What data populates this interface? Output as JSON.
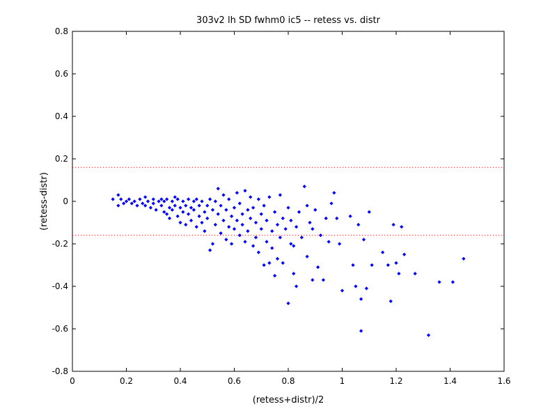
{
  "chart_data": {
    "type": "scatter",
    "title": "303v2 lh SD fwhm0 ic5 -- retess vs. distr",
    "xlabel": "(retess+distr)/2",
    "ylabel": "(retess-distr)",
    "xlim": [
      0,
      1.6
    ],
    "ylim": [
      -0.8,
      0.8
    ],
    "x_ticks": [
      "0",
      "0.2",
      "0.4",
      "0.6",
      "0.8",
      "1",
      "1.2",
      "1.4",
      "1.6"
    ],
    "y_ticks": [
      "-0.8",
      "-0.6",
      "-0.4",
      "-0.2",
      "0",
      "0.2",
      "0.4",
      "0.6",
      "0.8"
    ],
    "grid": false,
    "reference_lines": [
      {
        "y": 0.16,
        "style": "dotted",
        "color": "#ff0000"
      },
      {
        "y": -0.16,
        "style": "dotted",
        "color": "#ff0000"
      }
    ],
    "series": [
      {
        "marker": "diamond",
        "color": "#0000ff",
        "points": [
          [
            0.15,
            0.01
          ],
          [
            0.17,
            0.03
          ],
          [
            0.18,
            0.01
          ],
          [
            0.17,
            -0.02
          ],
          [
            0.19,
            -0.01
          ],
          [
            0.2,
            0.0
          ],
          [
            0.21,
            0.01
          ],
          [
            0.22,
            -0.01
          ],
          [
            0.23,
            0.0
          ],
          [
            0.24,
            -0.02
          ],
          [
            0.25,
            0.01
          ],
          [
            0.26,
            -0.01
          ],
          [
            0.27,
            0.02
          ],
          [
            0.27,
            -0.02
          ],
          [
            0.28,
            0.0
          ],
          [
            0.29,
            -0.03
          ],
          [
            0.3,
            0.01
          ],
          [
            0.3,
            -0.01
          ],
          [
            0.31,
            -0.04
          ],
          [
            0.32,
            0.0
          ],
          [
            0.33,
            0.01
          ],
          [
            0.33,
            -0.02
          ],
          [
            0.34,
            -0.05
          ],
          [
            0.34,
            0.0
          ],
          [
            0.35,
            -0.06
          ],
          [
            0.35,
            0.01
          ],
          [
            0.36,
            -0.03
          ],
          [
            0.36,
            -0.08
          ],
          [
            0.37,
            0.0
          ],
          [
            0.37,
            -0.04
          ],
          [
            0.38,
            0.02
          ],
          [
            0.38,
            -0.02
          ],
          [
            0.39,
            -0.07
          ],
          [
            0.39,
            0.01
          ],
          [
            0.4,
            -0.03
          ],
          [
            0.4,
            -0.1
          ],
          [
            0.41,
            0.0
          ],
          [
            0.41,
            -0.05
          ],
          [
            0.42,
            -0.02
          ],
          [
            0.42,
            -0.11
          ],
          [
            0.43,
            0.01
          ],
          [
            0.43,
            -0.06
          ],
          [
            0.44,
            -0.03
          ],
          [
            0.44,
            -0.09
          ],
          [
            0.45,
            0.0
          ],
          [
            0.45,
            -0.04
          ],
          [
            0.46,
            -0.12
          ],
          [
            0.46,
            0.01
          ],
          [
            0.47,
            -0.07
          ],
          [
            0.47,
            -0.02
          ],
          [
            0.48,
            -0.1
          ],
          [
            0.48,
            0.0
          ],
          [
            0.49,
            -0.05
          ],
          [
            0.49,
            -0.14
          ],
          [
            0.5,
            -0.02
          ],
          [
            0.5,
            -0.08
          ],
          [
            0.51,
            -0.23
          ],
          [
            0.51,
            0.01
          ],
          [
            0.52,
            -0.04
          ],
          [
            0.52,
            -0.2
          ],
          [
            0.53,
            -0.11
          ],
          [
            0.53,
            0.0
          ],
          [
            0.54,
            -0.06
          ],
          [
            0.54,
            0.06
          ],
          [
            0.55,
            -0.15
          ],
          [
            0.55,
            -0.02
          ],
          [
            0.56,
            -0.09
          ],
          [
            0.56,
            0.03
          ],
          [
            0.57,
            -0.18
          ],
          [
            0.57,
            -0.04
          ],
          [
            0.58,
            -0.12
          ],
          [
            0.58,
            0.01
          ],
          [
            0.59,
            -0.07
          ],
          [
            0.59,
            -0.2
          ],
          [
            0.6,
            -0.03
          ],
          [
            0.6,
            -0.13
          ],
          [
            0.61,
            0.04
          ],
          [
            0.61,
            -0.09
          ],
          [
            0.62,
            -0.16
          ],
          [
            0.62,
            -0.01
          ],
          [
            0.63,
            -0.06
          ],
          [
            0.63,
            -0.11
          ],
          [
            0.64,
            0.05
          ],
          [
            0.64,
            -0.19
          ],
          [
            0.65,
            -0.04
          ],
          [
            0.65,
            -0.14
          ],
          [
            0.66,
            -0.08
          ],
          [
            0.66,
            0.02
          ],
          [
            0.67,
            -0.21
          ],
          [
            0.67,
            -0.03
          ],
          [
            0.68,
            -0.17
          ],
          [
            0.68,
            -0.1
          ],
          [
            0.69,
            0.01
          ],
          [
            0.69,
            -0.24
          ],
          [
            0.7,
            -0.06
          ],
          [
            0.7,
            -0.13
          ],
          [
            0.71,
            -0.3
          ],
          [
            0.71,
            -0.02
          ],
          [
            0.72,
            -0.19
          ],
          [
            0.72,
            -0.09
          ],
          [
            0.73,
            -0.29
          ],
          [
            0.73,
            0.02
          ],
          [
            0.74,
            -0.14
          ],
          [
            0.74,
            -0.22
          ],
          [
            0.75,
            -0.05
          ],
          [
            0.75,
            -0.35
          ],
          [
            0.76,
            -0.11
          ],
          [
            0.76,
            -0.27
          ],
          [
            0.77,
            0.03
          ],
          [
            0.77,
            -0.17
          ],
          [
            0.78,
            -0.29
          ],
          [
            0.78,
            -0.08
          ],
          [
            0.79,
            -0.13
          ],
          [
            0.8,
            -0.48
          ],
          [
            0.8,
            -0.03
          ],
          [
            0.81,
            -0.2
          ],
          [
            0.81,
            -0.09
          ],
          [
            0.82,
            -0.34
          ],
          [
            0.82,
            -0.21
          ],
          [
            0.83,
            -0.4
          ],
          [
            0.83,
            -0.12
          ],
          [
            0.84,
            -0.05
          ],
          [
            0.85,
            -0.17
          ],
          [
            0.86,
            0.07
          ],
          [
            0.87,
            -0.02
          ],
          [
            0.87,
            -0.26
          ],
          [
            0.88,
            -0.1
          ],
          [
            0.89,
            -0.37
          ],
          [
            0.89,
            -0.13
          ],
          [
            0.9,
            -0.04
          ],
          [
            0.91,
            -0.31
          ],
          [
            0.92,
            -0.16
          ],
          [
            0.93,
            -0.37
          ],
          [
            0.94,
            -0.08
          ],
          [
            0.95,
            -0.19
          ],
          [
            0.96,
            -0.01
          ],
          [
            0.97,
            0.04
          ],
          [
            0.98,
            -0.08
          ],
          [
            0.99,
            -0.2
          ],
          [
            1.0,
            -0.42
          ],
          [
            1.03,
            -0.07
          ],
          [
            1.04,
            -0.3
          ],
          [
            1.05,
            -0.4
          ],
          [
            1.06,
            -0.11
          ],
          [
            1.07,
            -0.46
          ],
          [
            1.07,
            -0.61
          ],
          [
            1.08,
            -0.18
          ],
          [
            1.09,
            -0.41
          ],
          [
            1.1,
            -0.05
          ],
          [
            1.11,
            -0.3
          ],
          [
            1.15,
            -0.24
          ],
          [
            1.17,
            -0.3
          ],
          [
            1.18,
            -0.47
          ],
          [
            1.19,
            -0.11
          ],
          [
            1.2,
            -0.29
          ],
          [
            1.21,
            -0.34
          ],
          [
            1.22,
            -0.12
          ],
          [
            1.23,
            -0.25
          ],
          [
            1.27,
            -0.34
          ],
          [
            1.32,
            -0.63
          ],
          [
            1.36,
            -0.38
          ],
          [
            1.41,
            -0.38
          ],
          [
            1.45,
            -0.27
          ]
        ]
      }
    ]
  }
}
